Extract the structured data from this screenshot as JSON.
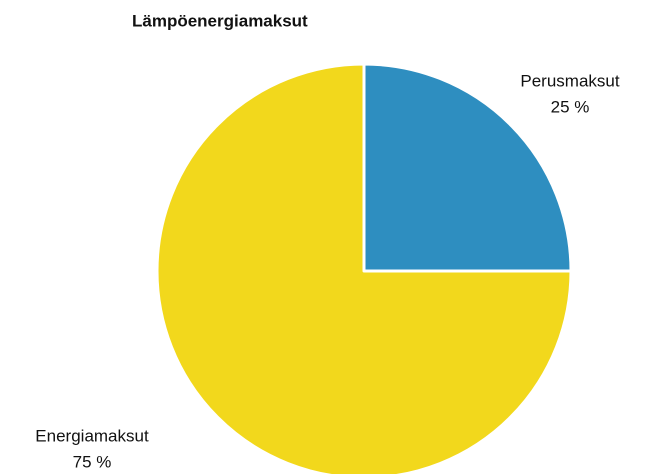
{
  "chart_data": {
    "type": "pie",
    "title": "Lämpöenergiamaksut",
    "categories": [
      "Perusmaksut",
      "Energiamaksut"
    ],
    "values": [
      25,
      75
    ],
    "value_labels": [
      "25 %",
      "75 %"
    ],
    "colors": [
      "#2e8ec0",
      "#f2d81c"
    ]
  }
}
